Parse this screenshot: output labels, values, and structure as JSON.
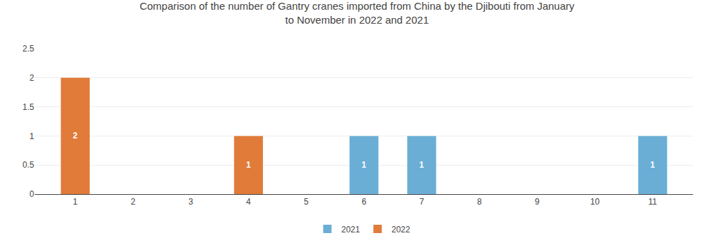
{
  "chart_data": {
    "type": "bar",
    "title": "Comparison of the number of Gantry cranes imported from China by the Djibouti from January\nto November in 2022 and 2021",
    "x": [
      1,
      2,
      3,
      4,
      5,
      6,
      7,
      8,
      9,
      10,
      11
    ],
    "series": [
      {
        "name": "2021",
        "color": "#6aaed6",
        "values": [
          0,
          0,
          0,
          0,
          0,
          1,
          1,
          0,
          0,
          0,
          1
        ]
      },
      {
        "name": "2022",
        "color": "#e07b39",
        "values": [
          2,
          0,
          0,
          1,
          0,
          0,
          0,
          0,
          0,
          0,
          0
        ]
      }
    ],
    "xlim": [
      0.3,
      11.7
    ],
    "xticks": [
      1,
      2,
      3,
      4,
      5,
      6,
      7,
      8,
      9,
      10,
      11
    ],
    "ylim": [
      0,
      2.5
    ],
    "yticks": [
      0,
      0.5,
      1,
      1.5,
      2,
      2.5
    ],
    "grid": true,
    "legend": "bottom",
    "data_labels": true
  }
}
